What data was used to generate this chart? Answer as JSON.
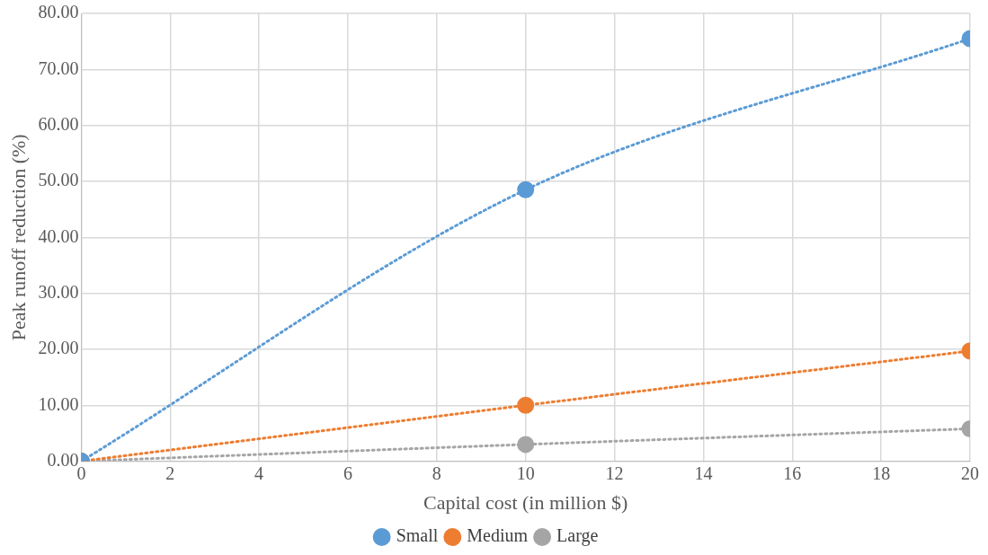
{
  "chart_data": {
    "type": "line",
    "xlabel": "Capital cost (in million $)",
    "ylabel": "Peak runoff reduction (%)",
    "x": [
      0,
      10,
      20
    ],
    "series": [
      {
        "name": "Small",
        "color": "#5b9bd5",
        "values": [
          0,
          48.5,
          75.5
        ]
      },
      {
        "name": "Medium",
        "color": "#ed7d31",
        "values": [
          0,
          10,
          19.7
        ]
      },
      {
        "name": "Large",
        "color": "#a5a5a5",
        "values": [
          0,
          3,
          5.8
        ]
      }
    ],
    "xlim": [
      0,
      20
    ],
    "xticks": [
      0,
      2,
      4,
      6,
      8,
      10,
      12,
      14,
      16,
      18,
      20
    ],
    "ylim": [
      0,
      80
    ],
    "yticks": [
      {
        "value": 0,
        "label": "0.00"
      },
      {
        "value": 10,
        "label": "10.00"
      },
      {
        "value": 20,
        "label": "20.00"
      },
      {
        "value": 30,
        "label": "30.00"
      },
      {
        "value": 40,
        "label": "40.00"
      },
      {
        "value": 50,
        "label": "50.00"
      },
      {
        "value": 60,
        "label": "60.00"
      },
      {
        "value": 70,
        "label": "70.00"
      },
      {
        "value": 80,
        "label": "80.00"
      }
    ],
    "grid": true,
    "legend": "bottom",
    "marker": "circle",
    "line_style": "dotted"
  }
}
